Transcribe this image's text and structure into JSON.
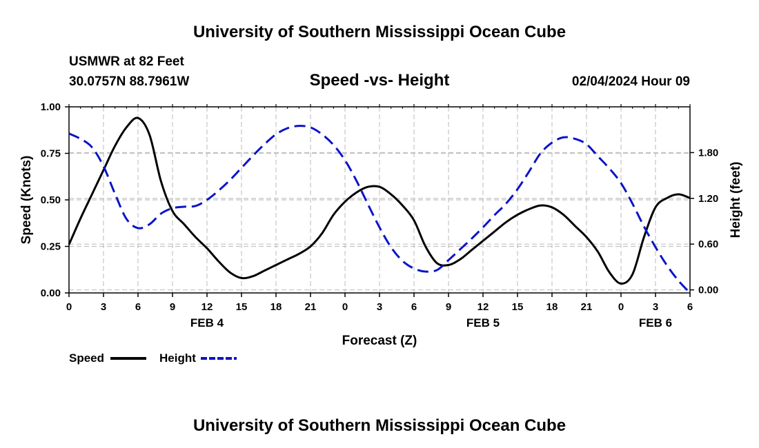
{
  "header": {
    "title": "University of Southern Mississippi Ocean Cube",
    "station": "USMWR at 82 Feet",
    "coords": "30.0757N  88.7961W",
    "subtitle": "Speed -vs- Height",
    "datetime": "02/04/2024 Hour 09"
  },
  "footer": {
    "title": "University of Southern Mississippi Ocean Cube"
  },
  "chart_data": {
    "type": "line",
    "title": "Speed -vs- Height",
    "xlabel": "Forecast (Z)",
    "ylabel_left": "Speed (Knots)",
    "ylabel_right": "Height (feet)",
    "x_range": [
      0,
      54
    ],
    "x_ticks": [
      {
        "x": 0,
        "label": "0"
      },
      {
        "x": 3,
        "label": "3"
      },
      {
        "x": 6,
        "label": "6"
      },
      {
        "x": 9,
        "label": "9"
      },
      {
        "x": 12,
        "label": "12"
      },
      {
        "x": 15,
        "label": "15"
      },
      {
        "x": 18,
        "label": "18"
      },
      {
        "x": 21,
        "label": "21"
      },
      {
        "x": 24,
        "label": "0"
      },
      {
        "x": 27,
        "label": "3"
      },
      {
        "x": 30,
        "label": "6"
      },
      {
        "x": 33,
        "label": "9"
      },
      {
        "x": 36,
        "label": "12"
      },
      {
        "x": 39,
        "label": "15"
      },
      {
        "x": 42,
        "label": "18"
      },
      {
        "x": 45,
        "label": "21"
      },
      {
        "x": 48,
        "label": "0"
      },
      {
        "x": 51,
        "label": "3"
      },
      {
        "x": 54,
        "label": "6"
      }
    ],
    "date_labels": [
      {
        "x": 12,
        "label": "FEB 4"
      },
      {
        "x": 36,
        "label": "FEB 5"
      },
      {
        "x": 51,
        "label": "FEB 6"
      }
    ],
    "left_axis": {
      "range": [
        0,
        1.0
      ],
      "ticks": [
        "0.00",
        "0.25",
        "0.50",
        "0.75",
        "1.00"
      ],
      "tick_values": [
        0,
        0.25,
        0.5,
        0.75,
        1.0
      ]
    },
    "right_axis": {
      "range": [
        -0.04,
        2.4
      ],
      "ticks": [
        "0.00",
        "0.60",
        "1.20",
        "1.80"
      ],
      "tick_values": [
        0,
        0.6,
        1.2,
        1.8
      ]
    },
    "grid": true,
    "legend": {
      "position": "bottom-left",
      "speed_label": "Speed",
      "height_label": "Height"
    },
    "series": [
      {
        "name": "Speed",
        "axis": "left",
        "color": "#000000",
        "style": "solid",
        "x": [
          0,
          1,
          2,
          3,
          4,
          5,
          6,
          7,
          8,
          9,
          10,
          11,
          12,
          13,
          14,
          15,
          16,
          17,
          18,
          19,
          20,
          21,
          22,
          23,
          24,
          25,
          26,
          27,
          28,
          29,
          30,
          31,
          32,
          33,
          34,
          35,
          36,
          37,
          38,
          39,
          40,
          41,
          42,
          43,
          44,
          45,
          46,
          47,
          48,
          49,
          50,
          51,
          52,
          53,
          54
        ],
        "values": [
          0.26,
          0.4,
          0.53,
          0.66,
          0.79,
          0.89,
          0.94,
          0.85,
          0.6,
          0.44,
          0.37,
          0.3,
          0.24,
          0.17,
          0.11,
          0.08,
          0.09,
          0.12,
          0.15,
          0.18,
          0.21,
          0.25,
          0.32,
          0.42,
          0.49,
          0.54,
          0.57,
          0.57,
          0.53,
          0.47,
          0.39,
          0.25,
          0.16,
          0.15,
          0.18,
          0.23,
          0.28,
          0.33,
          0.38,
          0.42,
          0.45,
          0.47,
          0.46,
          0.42,
          0.36,
          0.3,
          0.22,
          0.11,
          0.05,
          0.1,
          0.3,
          0.46,
          0.51,
          0.53,
          0.51
        ]
      },
      {
        "name": "Height",
        "axis": "right",
        "color": "#0a14c8",
        "style": "dashed",
        "x": [
          0,
          1,
          2,
          3,
          4,
          5,
          6,
          7,
          8,
          9,
          10,
          11,
          12,
          13,
          14,
          15,
          16,
          17,
          18,
          19,
          20,
          21,
          22,
          23,
          24,
          25,
          26,
          27,
          28,
          29,
          30,
          31,
          32,
          33,
          34,
          35,
          36,
          37,
          38,
          39,
          40,
          41,
          42,
          43,
          44,
          45,
          46,
          47,
          48,
          49,
          50,
          51,
          52,
          53,
          54
        ],
        "values": [
          2.05,
          1.98,
          1.87,
          1.62,
          1.26,
          0.93,
          0.81,
          0.86,
          1.0,
          1.07,
          1.09,
          1.1,
          1.18,
          1.3,
          1.44,
          1.6,
          1.76,
          1.91,
          2.04,
          2.12,
          2.15,
          2.13,
          2.04,
          1.9,
          1.7,
          1.43,
          1.12,
          0.82,
          0.56,
          0.38,
          0.28,
          0.24,
          0.26,
          0.39,
          0.53,
          0.67,
          0.82,
          0.98,
          1.13,
          1.32,
          1.55,
          1.79,
          1.93,
          2.0,
          1.98,
          1.91,
          1.75,
          1.59,
          1.4,
          1.13,
          0.83,
          0.56,
          0.32,
          0.12,
          -0.04
        ]
      }
    ]
  }
}
